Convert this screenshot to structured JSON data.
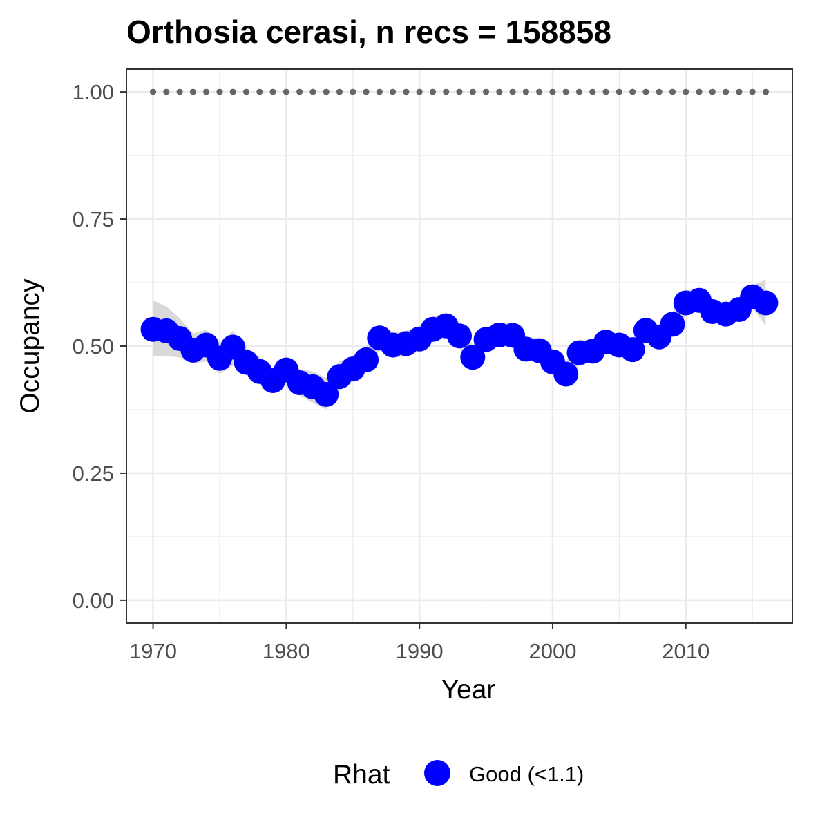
{
  "chart_data": {
    "type": "line",
    "title": "Orthosia cerasi, n recs = 158858",
    "xlabel": "Year",
    "ylabel": "Occupancy",
    "xlim": [
      1968,
      2018
    ],
    "ylim": [
      -0.045,
      1.045
    ],
    "x_ticks": [
      1970,
      1980,
      1990,
      2000,
      2010
    ],
    "x_tick_labels": [
      "1970",
      "1980",
      "1990",
      "2000",
      "2010"
    ],
    "y_ticks": [
      0,
      0.25,
      0.5,
      0.75,
      1.0
    ],
    "y_tick_labels": [
      "0.00",
      "0.25",
      "0.50",
      "0.75",
      "1.00"
    ],
    "grid": true,
    "legend": {
      "title": "Rhat",
      "position": "bottom",
      "entries": [
        {
          "label": "Good (<1.1)",
          "color": "#0000ff"
        }
      ]
    },
    "colors": {
      "points": "#0000ff",
      "ribbon": "#d9d9d9",
      "reference": "#666666",
      "grid": "#ebebeb",
      "panel_border": "#333333"
    },
    "series": [
      {
        "name": "Good (<1.1)",
        "x": [
          1970,
          1971,
          1972,
          1973,
          1974,
          1975,
          1976,
          1977,
          1978,
          1979,
          1980,
          1981,
          1982,
          1983,
          1984,
          1985,
          1986,
          1987,
          1988,
          1989,
          1990,
          1991,
          1992,
          1993,
          1994,
          1995,
          1996,
          1997,
          1998,
          1999,
          2000,
          2001,
          2002,
          2003,
          2004,
          2005,
          2006,
          2007,
          2008,
          2009,
          2010,
          2011,
          2012,
          2013,
          2014,
          2015,
          2016
        ],
        "y": [
          0.533,
          0.53,
          0.515,
          0.492,
          0.502,
          0.476,
          0.498,
          0.468,
          0.45,
          0.432,
          0.453,
          0.428,
          0.42,
          0.405,
          0.44,
          0.455,
          0.473,
          0.516,
          0.502,
          0.505,
          0.514,
          0.533,
          0.54,
          0.52,
          0.478,
          0.513,
          0.522,
          0.521,
          0.494,
          0.491,
          0.469,
          0.445,
          0.487,
          0.49,
          0.508,
          0.502,
          0.493,
          0.531,
          0.518,
          0.543,
          0.585,
          0.59,
          0.568,
          0.563,
          0.572,
          0.597,
          0.585
        ],
        "lower": [
          0.48,
          0.48,
          0.478,
          0.466,
          0.47,
          0.445,
          0.462,
          0.443,
          0.425,
          0.413,
          0.428,
          0.403,
          0.388,
          0.376,
          0.412,
          0.43,
          0.452,
          0.492,
          0.477,
          0.48,
          0.49,
          0.51,
          0.515,
          0.495,
          0.46,
          0.49,
          0.5,
          0.5,
          0.472,
          0.468,
          0.445,
          0.425,
          0.462,
          0.47,
          0.487,
          0.483,
          0.472,
          0.51,
          0.5,
          0.52,
          0.562,
          0.568,
          0.55,
          0.545,
          0.552,
          0.575,
          0.54
        ],
        "upper": [
          0.59,
          0.578,
          0.555,
          0.525,
          0.532,
          0.508,
          0.53,
          0.497,
          0.478,
          0.455,
          0.48,
          0.455,
          0.45,
          0.438,
          0.47,
          0.482,
          0.498,
          0.543,
          0.527,
          0.53,
          0.54,
          0.558,
          0.565,
          0.548,
          0.502,
          0.537,
          0.546,
          0.544,
          0.518,
          0.515,
          0.494,
          0.47,
          0.513,
          0.512,
          0.53,
          0.523,
          0.516,
          0.553,
          0.538,
          0.567,
          0.61,
          0.612,
          0.587,
          0.582,
          0.593,
          0.62,
          0.63
        ]
      },
      {
        "name": "",
        "x": [
          1970,
          1971,
          1972,
          1973,
          1974,
          1975,
          1976,
          1977,
          1978,
          1979,
          1980,
          1981,
          1982,
          1983,
          1984,
          1985,
          1986,
          1987,
          1988,
          1989,
          1990,
          1991,
          1992,
          1993,
          1994,
          1995,
          1996,
          1997,
          1998,
          1999,
          2000,
          2001,
          2002,
          2003,
          2004,
          2005,
          2006,
          2007,
          2008,
          2009,
          2010,
          2011,
          2012,
          2013,
          2014,
          2015,
          2016
        ],
        "y": [
          1,
          1,
          1,
          1,
          1,
          1,
          1,
          1,
          1,
          1,
          1,
          1,
          1,
          1,
          1,
          1,
          1,
          1,
          1,
          1,
          1,
          1,
          1,
          1,
          1,
          1,
          1,
          1,
          1,
          1,
          1,
          1,
          1,
          1,
          1,
          1,
          1,
          1,
          1,
          1,
          1,
          1,
          1,
          1,
          1,
          1,
          1
        ]
      }
    ]
  }
}
